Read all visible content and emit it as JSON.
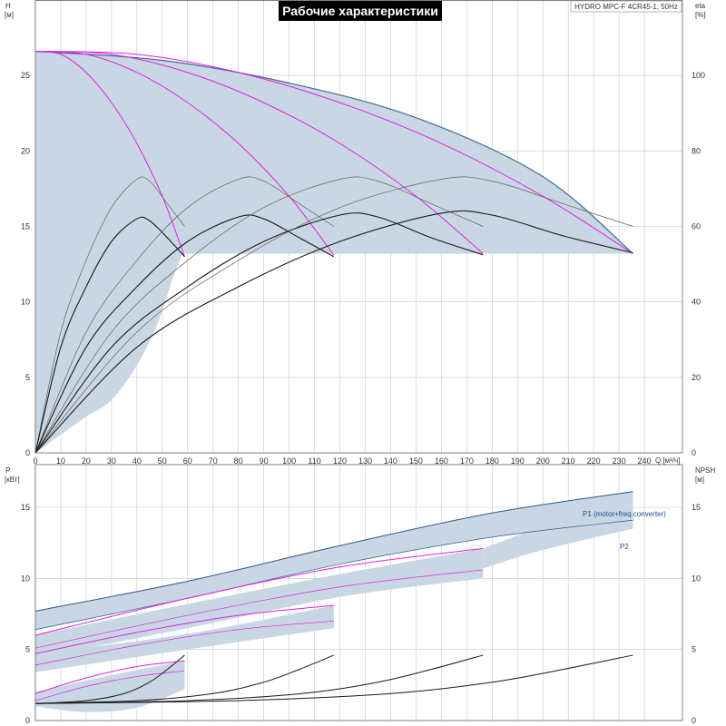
{
  "title": "Рабочие характеристики",
  "model": "HYDRO MPC-F 4CR45-1, 50Hz",
  "colors": {
    "envelope": "#c9d7e4",
    "envelope_edge": "#3e6a96",
    "pump_curve": "#e020e0",
    "eta_best": "#1a1a1a",
    "eta_other": "#606060",
    "grid": "#c8c8c8",
    "title_bg": "#000000",
    "power_line": "#2a5a8a"
  },
  "chart_data": [
    {
      "type": "line",
      "name": "head-efficiency",
      "xlabel": "Q [м³/ч]",
      "ylabel": "H [м]",
      "ylabel_top": "H",
      "ylabel_unit": "[м]",
      "y2label_top": "eta",
      "y2label_unit": "[%]",
      "x_unit_label": "Q [м³/ч]",
      "xlim": [
        0,
        255
      ],
      "ylim": [
        0,
        30
      ],
      "y2lim": [
        0,
        120
      ],
      "xticks": [
        0,
        10,
        20,
        30,
        40,
        50,
        60,
        70,
        80,
        90,
        100,
        110,
        120,
        130,
        140,
        150,
        160,
        170,
        180,
        190,
        200,
        210,
        220,
        230,
        240
      ],
      "yticks": [
        0,
        5,
        10,
        15,
        20,
        25
      ],
      "y2ticks": [
        0,
        20,
        40,
        60,
        80,
        100
      ],
      "grid": true,
      "envelope": {
        "upper": [
          [
            0,
            26.6
          ],
          [
            50,
            26.0
          ],
          [
            100,
            24.5
          ],
          [
            150,
            22.2
          ],
          [
            200,
            18.3
          ],
          [
            235.5,
            13.2
          ]
        ],
        "lower_right": [
          [
            235.5,
            13.2
          ],
          [
            120,
            13.2
          ],
          [
            58,
            13.2
          ]
        ],
        "lower_left": [
          [
            58,
            13.2
          ],
          [
            54,
            11.5
          ],
          [
            48,
            8.5
          ],
          [
            40,
            5.8
          ],
          [
            30,
            3.5
          ],
          [
            20,
            2.4
          ],
          [
            15,
            1.8
          ],
          [
            10,
            1.2
          ],
          [
            5,
            0.6
          ],
          [
            0,
            0
          ]
        ]
      },
      "head_curves": [
        {
          "pumps": 1,
          "points": [
            [
              0,
              26.6
            ],
            [
              10,
              26.4
            ],
            [
              20,
              25.2
            ],
            [
              30,
              23.2
            ],
            [
              40,
              20.5
            ],
            [
              50,
              17.0
            ],
            [
              58.8,
              13.0
            ]
          ]
        },
        {
          "pumps": 2,
          "points": [
            [
              0,
              26.6
            ],
            [
              20,
              26.4
            ],
            [
              40,
              25.2
            ],
            [
              60,
              23.2
            ],
            [
              80,
              20.5
            ],
            [
              100,
              17.0
            ],
            [
              117.6,
              13.1
            ]
          ]
        },
        {
          "pumps": 3,
          "points": [
            [
              0,
              26.6
            ],
            [
              30,
              26.4
            ],
            [
              60,
              25.2
            ],
            [
              90,
              23.2
            ],
            [
              120,
              20.5
            ],
            [
              150,
              17.0
            ],
            [
              176.4,
              13.2
            ]
          ]
        },
        {
          "pumps": 4,
          "points": [
            [
              0,
              26.6
            ],
            [
              40,
              26.4
            ],
            [
              80,
              25.2
            ],
            [
              120,
              23.2
            ],
            [
              160,
              20.5
            ],
            [
              200,
              17.0
            ],
            [
              235.5,
              13.2
            ]
          ]
        }
      ],
      "eta_curves": [
        {
          "pumps": 1,
          "kind": "other",
          "points": [
            [
              0,
              0
            ],
            [
              10,
              32
            ],
            [
              20,
              51
            ],
            [
              30,
              65
            ],
            [
              40,
              72.5
            ],
            [
              45,
              72
            ],
            [
              52,
              66
            ],
            [
              58.8,
              60
            ]
          ]
        },
        {
          "pumps": 1,
          "kind": "best",
          "points": [
            [
              0,
              0
            ],
            [
              10,
              28
            ],
            [
              20,
              44
            ],
            [
              30,
              56
            ],
            [
              40,
              62
            ],
            [
              45,
              61.5
            ],
            [
              52,
              57
            ],
            [
              58.8,
              52
            ]
          ]
        },
        {
          "pumps": 2,
          "kind": "other",
          "points": [
            [
              0,
              0
            ],
            [
              20,
              32
            ],
            [
              40,
              51
            ],
            [
              60,
              65
            ],
            [
              80,
              72.5
            ],
            [
              90,
              72
            ],
            [
              104,
              66
            ],
            [
              117.6,
              60
            ]
          ]
        },
        {
          "pumps": 2,
          "kind": "best",
          "points": [
            [
              0,
              0
            ],
            [
              20,
              28
            ],
            [
              40,
              44
            ],
            [
              60,
              56
            ],
            [
              80,
              62.5
            ],
            [
              90,
              62
            ],
            [
              104,
              57
            ],
            [
              117.6,
              52
            ]
          ]
        },
        {
          "pumps": 3,
          "kind": "other",
          "points": [
            [
              0,
              0
            ],
            [
              30,
              32
            ],
            [
              60,
              51
            ],
            [
              90,
              65
            ],
            [
              120,
              72.5
            ],
            [
              135,
              72
            ],
            [
              156,
              66
            ],
            [
              176.4,
              60
            ]
          ]
        },
        {
          "pumps": 3,
          "kind": "best",
          "points": [
            [
              0,
              0
            ],
            [
              30,
              28
            ],
            [
              60,
              44
            ],
            [
              90,
              56
            ],
            [
              120,
              63
            ],
            [
              135,
              62.5
            ],
            [
              156,
              57
            ],
            [
              176.4,
              52.5
            ]
          ]
        },
        {
          "pumps": 4,
          "kind": "other",
          "points": [
            [
              0,
              0
            ],
            [
              40,
              32
            ],
            [
              80,
              51
            ],
            [
              120,
              65
            ],
            [
              160,
              72.5
            ],
            [
              180,
              72
            ],
            [
              208,
              66
            ],
            [
              235.5,
              60
            ]
          ]
        },
        {
          "pumps": 4,
          "kind": "best",
          "points": [
            [
              0,
              0
            ],
            [
              40,
              28
            ],
            [
              80,
              44
            ],
            [
              120,
              56
            ],
            [
              160,
              63.5
            ],
            [
              180,
              63
            ],
            [
              208,
              57.5
            ],
            [
              235.5,
              53
            ]
          ]
        }
      ]
    },
    {
      "type": "line",
      "name": "power-npsh",
      "ylabel_top": "P",
      "ylabel_unit": "[кВт]",
      "y2label_top": "NPSH",
      "y2label_unit": "[м]",
      "xlim": [
        0,
        255
      ],
      "ylim": [
        0,
        18
      ],
      "y2lim": [
        0,
        18
      ],
      "yticks": [
        0,
        5,
        10,
        15
      ],
      "y2ticks": [
        0,
        5,
        10,
        15
      ],
      "grid": true,
      "annotations": {
        "p1": "P1 (motor+freq.converter)",
        "p2": "P2"
      },
      "p1": [
        [
          0,
          7.7
        ],
        [
          60,
          9.8
        ],
        [
          120,
          12.3
        ],
        [
          180,
          14.6
        ],
        [
          235.5,
          16.1
        ]
      ],
      "p2": [
        [
          0,
          6.4
        ],
        [
          60,
          8.6
        ],
        [
          120,
          11.0
        ],
        [
          180,
          12.9
        ],
        [
          235.5,
          14.1
        ]
      ],
      "bands": [
        {
          "upper": [
            [
              0,
              7.7
            ],
            [
              60,
              9.8
            ],
            [
              120,
              12.3
            ],
            [
              180,
              14.6
            ],
            [
              235.5,
              16.1
            ]
          ],
          "lower": [
            [
              0,
              6.4
            ],
            [
              60,
              8.6
            ],
            [
              120,
              11.0
            ],
            [
              180,
              12.9
            ],
            [
              235.5,
              14.1
            ]
          ]
        },
        {
          "upper": [
            [
              176.4,
              12.1
            ],
            [
              235.5,
              16.1
            ]
          ],
          "lower": [
            [
              176.4,
              10.7
            ],
            [
              200,
              12.0
            ],
            [
              235.5,
              13.5
            ]
          ]
        },
        {
          "upper": [
            [
              0,
              6.0
            ],
            [
              60,
              8.2
            ],
            [
              120,
              10.3
            ],
            [
              176.4,
              12.1
            ]
          ],
          "lower": [
            [
              0,
              4.4
            ],
            [
              60,
              6.5
            ],
            [
              120,
              8.7
            ],
            [
              176.4,
              10.0
            ]
          ]
        },
        {
          "upper": [
            [
              0,
              4.7
            ],
            [
              60,
              6.1
            ],
            [
              117.6,
              8.1
            ]
          ],
          "lower": [
            [
              0,
              3.4
            ],
            [
              60,
              5.0
            ],
            [
              117.6,
              6.5
            ]
          ]
        },
        {
          "upper": [
            [
              0,
              2.0
            ],
            [
              30,
              3.2
            ],
            [
              58.8,
              4.2
            ]
          ],
          "lower": [
            [
              0,
              1.0
            ],
            [
              20,
              0.6
            ],
            [
              40,
              0.9
            ],
            [
              58.8,
              2.2
            ]
          ]
        }
      ],
      "power_curves_p1": [
        {
          "pumps": 1,
          "points": [
            [
              0,
              1.9
            ],
            [
              20,
              3.0
            ],
            [
              40,
              3.8
            ],
            [
              58.8,
              4.2
            ]
          ]
        },
        {
          "pumps": 2,
          "points": [
            [
              0,
              4.7
            ],
            [
              40,
              6.2
            ],
            [
              80,
              7.4
            ],
            [
              117.6,
              8.1
            ]
          ]
        },
        {
          "pumps": 3,
          "points": [
            [
              0,
              6.0
            ],
            [
              60,
              8.6
            ],
            [
              120,
              10.8
            ],
            [
              176.4,
              12.1
            ]
          ]
        }
      ],
      "power_curves_p2": [
        {
          "pumps": 1,
          "points": [
            [
              0,
              1.4
            ],
            [
              20,
              2.4
            ],
            [
              40,
              3.1
            ],
            [
              58.8,
              3.5
            ]
          ]
        },
        {
          "pumps": 2,
          "points": [
            [
              0,
              3.9
            ],
            [
              40,
              5.3
            ],
            [
              80,
              6.4
            ],
            [
              117.6,
              7.0
            ]
          ]
        },
        {
          "pumps": 3,
          "points": [
            [
              0,
              5.1
            ],
            [
              60,
              7.4
            ],
            [
              120,
              9.4
            ],
            [
              176.4,
              10.6
            ]
          ]
        }
      ],
      "npsh_curves": [
        {
          "pumps": 1,
          "points": [
            [
              0,
              1.2
            ],
            [
              20,
              1.4
            ],
            [
              35,
              1.9
            ],
            [
              45,
              2.7
            ],
            [
              52,
              3.6
            ],
            [
              58.8,
              4.6
            ]
          ]
        },
        {
          "pumps": 2,
          "points": [
            [
              0,
              1.2
            ],
            [
              40,
              1.4
            ],
            [
              70,
              1.9
            ],
            [
              90,
              2.7
            ],
            [
              104,
              3.6
            ],
            [
              117.6,
              4.6
            ]
          ]
        },
        {
          "pumps": 3,
          "points": [
            [
              0,
              1.2
            ],
            [
              60,
              1.4
            ],
            [
              105,
              1.9
            ],
            [
              135,
              2.7
            ],
            [
              156,
              3.6
            ],
            [
              176.4,
              4.6
            ]
          ]
        },
        {
          "pumps": 4,
          "points": [
            [
              0,
              1.2
            ],
            [
              80,
              1.4
            ],
            [
              140,
              1.9
            ],
            [
              180,
              2.7
            ],
            [
              208,
              3.6
            ],
            [
              235.5,
              4.6
            ]
          ]
        }
      ]
    }
  ]
}
